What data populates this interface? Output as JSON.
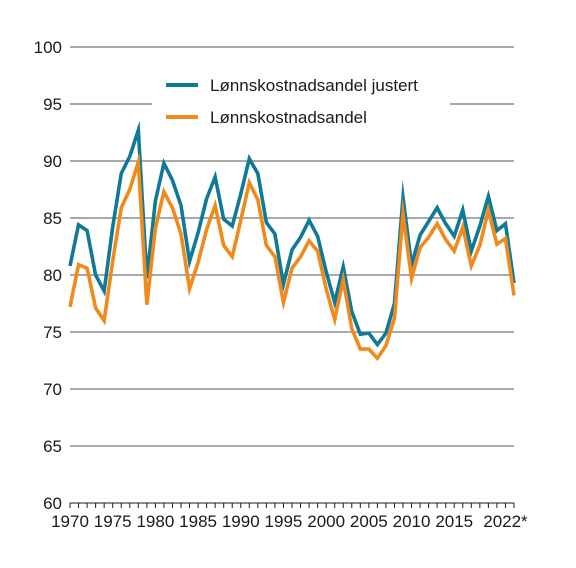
{
  "chart_data": {
    "type": "line",
    "title": "",
    "xlabel": "",
    "ylabel": "",
    "xlim": [
      1970,
      2022
    ],
    "ylim": [
      60,
      100
    ],
    "grid": true,
    "legend_position": "top-right",
    "yticks": [
      {
        "value": 60,
        "label": "60"
      },
      {
        "value": 65,
        "label": "65"
      },
      {
        "value": 70,
        "label": "70"
      },
      {
        "value": 75,
        "label": "75"
      },
      {
        "value": 80,
        "label": "80"
      },
      {
        "value": 85,
        "label": "85"
      },
      {
        "value": 90,
        "label": "90"
      },
      {
        "value": 95,
        "label": "95"
      },
      {
        "value": 100,
        "label": "100"
      }
    ],
    "xticks": [
      {
        "value": 1970,
        "label": "1970"
      },
      {
        "value": 1975,
        "label": "1975"
      },
      {
        "value": 1980,
        "label": "1980"
      },
      {
        "value": 1985,
        "label": "1985"
      },
      {
        "value": 1990,
        "label": "1990"
      },
      {
        "value": 1995,
        "label": "1995"
      },
      {
        "value": 2000,
        "label": "2000"
      },
      {
        "value": 2005,
        "label": "2005"
      },
      {
        "value": 2010,
        "label": "2010"
      },
      {
        "value": 2015,
        "label": "2015"
      },
      {
        "value": 2021,
        "label": "2022*"
      }
    ],
    "x": [
      1970,
      1971,
      1972,
      1973,
      1974,
      1975,
      1976,
      1977,
      1978,
      1979,
      1980,
      1981,
      1982,
      1983,
      1984,
      1985,
      1986,
      1987,
      1988,
      1989,
      1990,
      1991,
      1992,
      1993,
      1994,
      1995,
      1996,
      1997,
      1998,
      1999,
      2000,
      2001,
      2002,
      2003,
      2004,
      2005,
      2006,
      2007,
      2008,
      2009,
      2010,
      2011,
      2012,
      2013,
      2014,
      2015,
      2016,
      2017,
      2018,
      2019,
      2020,
      2021,
      2022
    ],
    "series": [
      {
        "name": "Lønnskostnadsandel justert",
        "color": "#0e7a98",
        "values": [
          80.8,
          84.4,
          83.9,
          80.0,
          78.6,
          84.2,
          88.9,
          90.4,
          92.7,
          79.7,
          86.5,
          89.8,
          88.3,
          86.1,
          81.2,
          83.7,
          86.7,
          88.6,
          84.9,
          84.3,
          87.1,
          90.2,
          88.9,
          84.6,
          83.6,
          79.2,
          82.2,
          83.3,
          84.8,
          83.4,
          80.3,
          77.6,
          80.7,
          76.8,
          74.8,
          74.9,
          73.9,
          74.9,
          77.5,
          86.8,
          80.9,
          83.5,
          84.7,
          85.9,
          84.5,
          83.4,
          85.7,
          82.1,
          84.3,
          86.9,
          83.9,
          84.5,
          79.3
        ]
      },
      {
        "name": "Lønnskostnadsandel",
        "color": "#f08a1c",
        "values": [
          77.2,
          80.9,
          80.6,
          77.1,
          76.0,
          81.2,
          85.9,
          87.5,
          89.9,
          77.4,
          84.1,
          87.3,
          85.9,
          83.6,
          78.8,
          81.1,
          84.0,
          86.1,
          82.6,
          81.6,
          84.8,
          88.1,
          86.6,
          82.6,
          81.6,
          77.6,
          80.6,
          81.6,
          83.0,
          82.1,
          78.8,
          76.1,
          79.6,
          75.3,
          73.5,
          73.5,
          72.7,
          73.8,
          76.2,
          85.4,
          79.7,
          82.4,
          83.3,
          84.5,
          83.1,
          82.1,
          84.2,
          80.8,
          82.6,
          85.7,
          82.7,
          83.2,
          78.2
        ]
      }
    ]
  }
}
